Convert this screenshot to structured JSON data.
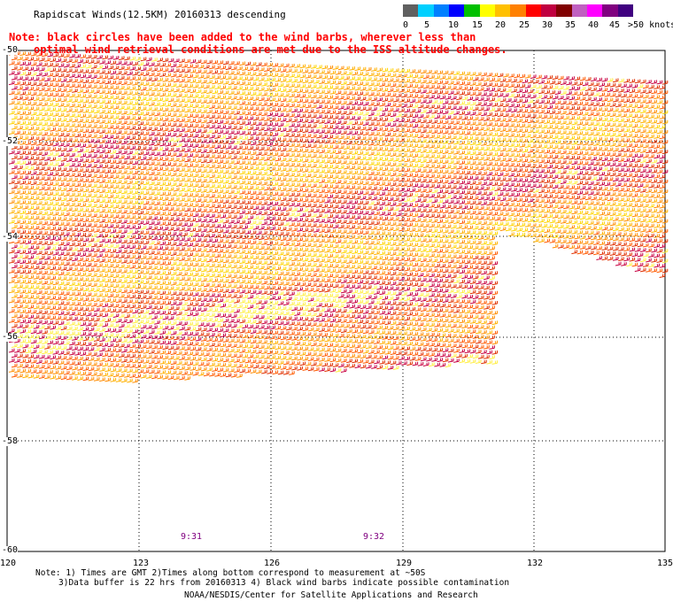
{
  "header": {
    "title": "Rapidscat Winds(12.5KM) 20160313 descending",
    "note_line1": "Note: black circles have been added to the wind barbs, wherever less than",
    "note_line2": "optimal wind retrieval conditions are met due to the ISS altitude changes."
  },
  "legend": {
    "labels": [
      "0",
      "5",
      "10",
      "15",
      "20",
      "25",
      "30",
      "35",
      "40",
      "45",
      ">50 knots"
    ],
    "colors": [
      "#606060",
      "#00d0ff",
      "#0080ff",
      "#0000ff",
      "#00c000",
      "#ffff00",
      "#ffc000",
      "#ff8000",
      "#ff0000",
      "#c00040",
      "#800000",
      "#c060c0",
      "#ff00ff",
      "#800080",
      "#400080"
    ]
  },
  "map": {
    "latitude_labels": [
      "-50",
      "-52",
      "-54",
      "-56",
      "-58",
      "-60"
    ],
    "longitude_labels": [
      "120",
      "123",
      "126",
      "129",
      "132",
      "135"
    ],
    "pass_times": [
      "9:31",
      "9:32"
    ],
    "barb_colors": [
      "#ffd400",
      "#ffb000",
      "#ff8c00",
      "#ff5a00",
      "#e03000",
      "#c80040",
      "#ffee40"
    ]
  },
  "footer": {
    "note1": "Note: 1) Times are GMT 2)Times along bottom correspond to measurement at ~50S",
    "note2": "3)Data buffer is 22 hrs from 20160313 4) Black wind barbs indicate possible contamination",
    "credit": "NOAA/NESDIS/Center for Satellite Applications and Research"
  }
}
